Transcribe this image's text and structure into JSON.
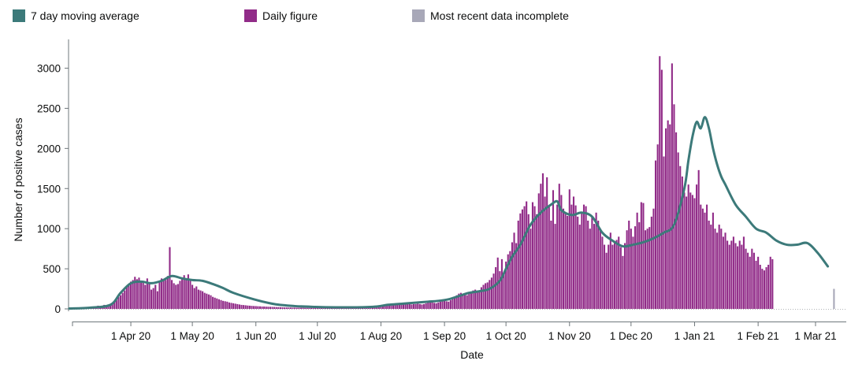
{
  "chart_data": {
    "type": "bar",
    "title": "",
    "xlabel": "Date",
    "ylabel": "Number of positive cases",
    "ylim": [
      0,
      3300
    ],
    "y_ticks": [
      0,
      500,
      1000,
      1500,
      2000,
      2500,
      3000
    ],
    "x_tick_labels": [
      "1 Apr 20",
      "1 May 20",
      "1 Jun 20",
      "1 Jul 20",
      "1 Aug 20",
      "1 Sep 20",
      "1 Oct 20",
      "1 Nov 20",
      "1 Dec 20",
      "1 Jan 21",
      "1 Feb 21",
      "1 Mar 21"
    ],
    "x_tick_days": [
      30,
      60,
      91,
      121,
      152,
      183,
      213,
      244,
      274,
      305,
      336,
      364
    ],
    "x_range_days": [
      0,
      379
    ],
    "colors": {
      "average": "#3c7a7a",
      "daily": "#912b88",
      "incomplete": "#a8a8b8",
      "axis": "#6f777b",
      "zero_line": "#b1b4b6"
    },
    "legend": [
      {
        "label": "7 day moving average",
        "color": "#3c7a7a"
      },
      {
        "label": "Daily figure",
        "color": "#912b88"
      },
      {
        "label": "Most recent data incomplete",
        "color": "#a8a8b8"
      }
    ],
    "series": [
      {
        "name": "Daily figure",
        "start_day": 0,
        "values": [
          2,
          3,
          4,
          5,
          6,
          8,
          10,
          12,
          15,
          18,
          20,
          22,
          24,
          28,
          40,
          32,
          35,
          50,
          45,
          55,
          60,
          75,
          90,
          110,
          150,
          170,
          200,
          230,
          270,
          300,
          340,
          360,
          400,
          370,
          390,
          330,
          350,
          300,
          380,
          320,
          240,
          260,
          300,
          220,
          330,
          380,
          350,
          360,
          410,
          770,
          360,
          320,
          300,
          310,
          350,
          390,
          420,
          380,
          430,
          350,
          300,
          260,
          280,
          240,
          230,
          220,
          200,
          190,
          180,
          170,
          150,
          140,
          130,
          120,
          110,
          100,
          95,
          90,
          80,
          75,
          70,
          65,
          60,
          55,
          50,
          48,
          45,
          42,
          40,
          38,
          36,
          35,
          33,
          32,
          30,
          30,
          28,
          27,
          26,
          25,
          24,
          23,
          22,
          21,
          20,
          19,
          18,
          17,
          17,
          16,
          16,
          15,
          15,
          14,
          14,
          13,
          13,
          13,
          13,
          12,
          12,
          12,
          12,
          12,
          13,
          13,
          13,
          14,
          14,
          15,
          16,
          17,
          17,
          18,
          19,
          20,
          20,
          21,
          22,
          23,
          24,
          25,
          25,
          26,
          27,
          28,
          28,
          29,
          30,
          32,
          34,
          36,
          38,
          40,
          45,
          50,
          55,
          60,
          65,
          60,
          55,
          55,
          60,
          55,
          60,
          65,
          60,
          55,
          60,
          60,
          65,
          60,
          55,
          60,
          70,
          80,
          90,
          85,
          75,
          70,
          80,
          90,
          100,
          100,
          95,
          90,
          110,
          130,
          150,
          170,
          190,
          200,
          190,
          180,
          170,
          190,
          210,
          230,
          240,
          220,
          230,
          270,
          300,
          320,
          330,
          360,
          390,
          440,
          520,
          640,
          470,
          620,
          440,
          590,
          680,
          720,
          830,
          950,
          820,
          1100,
          1190,
          1240,
          1280,
          1340,
          1180,
          1000,
          1330,
          1280,
          1180,
          1440,
          1560,
          1690,
          1400,
          1640,
          1280,
          1100,
          1480,
          1060,
          1300,
          1560,
          1420,
          1250,
          1200,
          1160,
          1490,
          1300,
          1400,
          1290,
          1150,
          1050,
          1200,
          1300,
          1280,
          1100,
          1000,
          1150,
          1060,
          1200,
          1100,
          1000,
          900,
          800,
          700,
          800,
          950,
          800,
          820,
          860,
          900,
          770,
          660,
          820,
          980,
          1100,
          1000,
          900,
          1030,
          1200,
          1080,
          1330,
          1320,
          980,
          1000,
          1020,
          1150,
          1250,
          1850,
          2050,
          3150,
          2980,
          1900,
          2250,
          2350,
          2300,
          3060,
          2550,
          2200,
          1950,
          1780,
          1650,
          1450,
          1400,
          1550,
          1450,
          1420,
          1380,
          1550,
          1730,
          1300,
          1250,
          1200,
          1300,
          1100,
          1050,
          1200,
          1000,
          950,
          1050,
          1000,
          900,
          950,
          850,
          800,
          850,
          900,
          820,
          780,
          850,
          800,
          900,
          750,
          700,
          650,
          750,
          700,
          600,
          650,
          550,
          500,
          480,
          520,
          550,
          650,
          620
        ],
        "color": "#912b88"
      },
      {
        "name": "Most recent data incomplete",
        "start_day": 373,
        "values": [
          250
        ],
        "color": "#a8a8b8"
      },
      {
        "name": "7 day moving average",
        "type": "line",
        "x": [
          0,
          10,
          20,
          25,
          30,
          35,
          40,
          45,
          50,
          55,
          60,
          65,
          70,
          75,
          80,
          90,
          100,
          110,
          120,
          130,
          140,
          150,
          155,
          160,
          165,
          170,
          175,
          180,
          185,
          190,
          195,
          200,
          205,
          210,
          213,
          216,
          220,
          225,
          230,
          235,
          238,
          240,
          245,
          250,
          255,
          260,
          265,
          270,
          275,
          280,
          285,
          290,
          295,
          300,
          302,
          304,
          306,
          308,
          310,
          312,
          314,
          316,
          318,
          320,
          325,
          330,
          335,
          340,
          345,
          350,
          355,
          360,
          365,
          370
        ],
        "y": [
          5,
          15,
          50,
          200,
          320,
          340,
          320,
          350,
          410,
          380,
          360,
          350,
          310,
          260,
          200,
          120,
          60,
          35,
          25,
          20,
          20,
          30,
          50,
          60,
          70,
          80,
          90,
          100,
          120,
          160,
          200,
          220,
          250,
          350,
          500,
          650,
          800,
          1050,
          1200,
          1300,
          1340,
          1230,
          1170,
          1200,
          1150,
          950,
          850,
          780,
          800,
          830,
          880,
          950,
          1050,
          1500,
          1850,
          2150,
          2330,
          2250,
          2390,
          2250,
          2000,
          1800,
          1650,
          1550,
          1300,
          1150,
          1000,
          950,
          850,
          800,
          800,
          820,
          700,
          530
        ],
        "color": "#3c7a7a"
      }
    ]
  }
}
